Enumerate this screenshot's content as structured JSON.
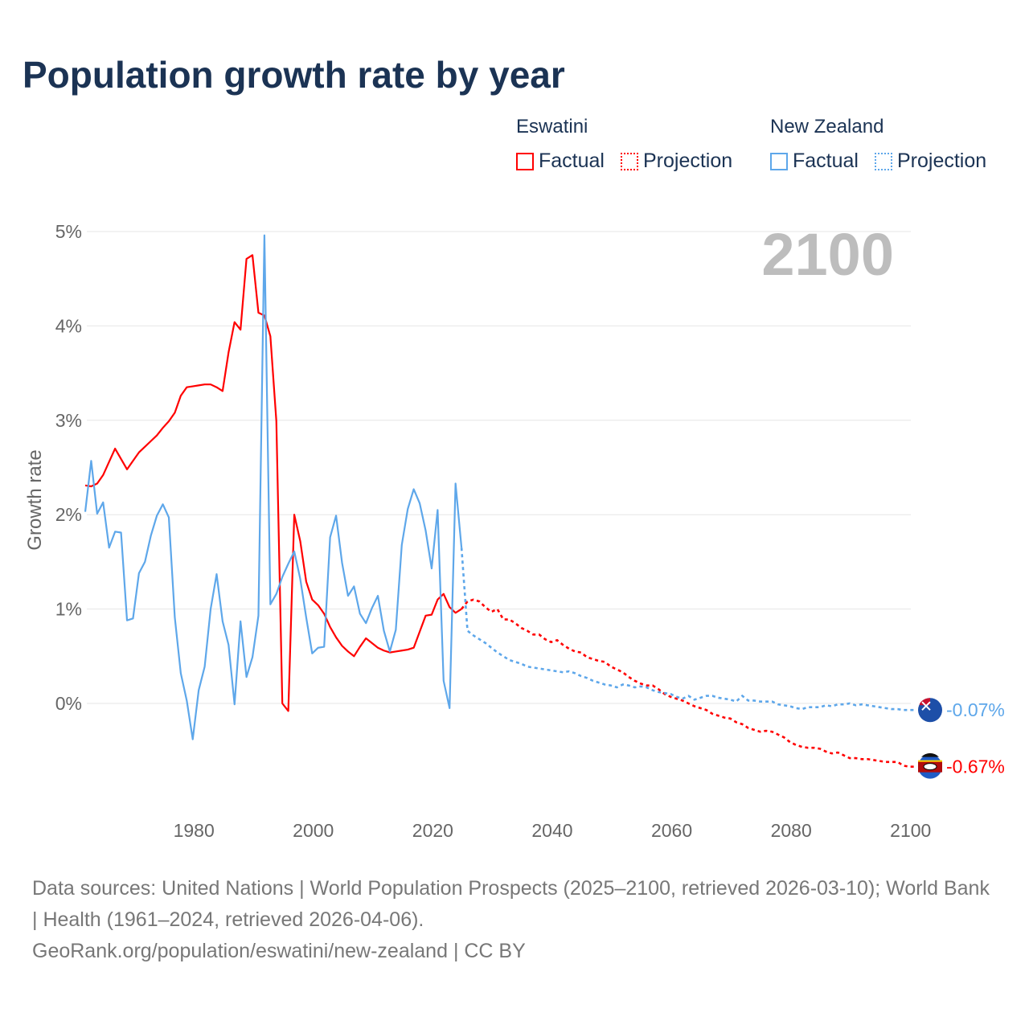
{
  "colors": {
    "eswatini": "#ff0000",
    "new_zealand": "#5ea7ea",
    "title": "#1b3354",
    "grid": "#e6e6e6",
    "year_watermark": "#bdbdbd"
  },
  "legend": {
    "groups": [
      {
        "country": "Eswatini",
        "factual": "Factual",
        "projection": "Projection"
      },
      {
        "country": "New Zealand",
        "factual": "Factual",
        "projection": "Projection"
      }
    ]
  },
  "footer": {
    "sources": "Data sources: United Nations | World Population Prospects (2025–2100, retrieved 2026-03-10); World Bank | Health (1961–2024, retrieved 2026-04-06).",
    "link": "GeoRank.org/population/eswatini/new-zealand | CC BY"
  },
  "chart_data": {
    "type": "line",
    "title": "Population growth rate by year",
    "xlabel": "",
    "ylabel": "Growth rate",
    "year_watermark": "2100",
    "xlim": [
      1961,
      2100
    ],
    "ylim": [
      -0.8,
      5.0
    ],
    "x_ticks": [
      1980,
      2000,
      2020,
      2040,
      2060,
      2080,
      2100
    ],
    "x_tick_labels": [
      "1980",
      "2000",
      "2020",
      "2040",
      "2060",
      "2080",
      "2100"
    ],
    "y_ticks": [
      0,
      1,
      2,
      3,
      4,
      5
    ],
    "y_tick_labels": [
      "0%",
      "1%",
      "2%",
      "3%",
      "4%",
      "5%"
    ],
    "grid": true,
    "legend_position": "top-right",
    "series": [
      {
        "name": "Eswatini",
        "key": "eswatini",
        "factual_start": 1961,
        "factual": [
          2.31,
          2.3,
          2.33,
          2.42,
          2.56,
          2.7,
          2.59,
          2.48,
          2.57,
          2.66,
          2.72,
          2.78,
          2.84,
          2.92,
          2.99,
          3.08,
          3.26,
          3.35,
          3.36,
          3.37,
          3.38,
          3.38,
          3.35,
          3.31,
          3.72,
          4.04,
          3.96,
          4.71,
          4.75,
          4.14,
          4.11,
          3.89,
          2.99,
          0.0,
          -0.08,
          2.0,
          1.72,
          1.29,
          1.1,
          1.04,
          0.95,
          0.81,
          0.7,
          0.61,
          0.55,
          0.5,
          0.6,
          0.69,
          0.64,
          0.59,
          0.56,
          0.54,
          0.55,
          0.56,
          0.57,
          0.59,
          0.76,
          0.93,
          0.94,
          1.1,
          1.16,
          1.02,
          0.96,
          1.0
        ],
        "projection_start": 2025,
        "projection": [
          1.08,
          1.1,
          1.08,
          1.02,
          0.97,
          1.0,
          0.89,
          0.89,
          0.85,
          0.8,
          0.77,
          0.73,
          0.73,
          0.68,
          0.65,
          0.67,
          0.62,
          0.58,
          0.55,
          0.54,
          0.49,
          0.47,
          0.45,
          0.44,
          0.39,
          0.36,
          0.33,
          0.28,
          0.24,
          0.21,
          0.19,
          0.19,
          0.15,
          0.1,
          0.07,
          0.05,
          0.03,
          0.0,
          -0.03,
          -0.05,
          -0.07,
          -0.11,
          -0.13,
          -0.15,
          -0.16,
          -0.2,
          -0.22,
          -0.26,
          -0.28,
          -0.3,
          -0.29,
          -0.3,
          -0.33,
          -0.36,
          -0.41,
          -0.44,
          -0.46,
          -0.47,
          -0.47,
          -0.48,
          -0.51,
          -0.53,
          -0.52,
          -0.55,
          -0.58,
          -0.58,
          -0.59,
          -0.59,
          -0.6,
          -0.61,
          -0.62,
          -0.62,
          -0.62,
          -0.66,
          -0.67,
          -0.67
        ],
        "end_label": "-0.67%"
      },
      {
        "name": "New Zealand",
        "key": "new_zealand",
        "factual_start": 1961,
        "factual": [
          2.03,
          2.57,
          2.01,
          2.13,
          1.65,
          1.82,
          1.81,
          0.88,
          0.9,
          1.38,
          1.5,
          1.78,
          1.99,
          2.11,
          1.97,
          0.91,
          0.32,
          0.03,
          -0.38,
          0.14,
          0.39,
          1.0,
          1.37,
          0.87,
          0.62,
          -0.01,
          0.87,
          0.28,
          0.49,
          0.93,
          4.96,
          1.05,
          1.16,
          1.34,
          1.48,
          1.61,
          1.32,
          0.91,
          0.53,
          0.59,
          0.6,
          1.76,
          1.99,
          1.49,
          1.14,
          1.24,
          0.95,
          0.85,
          1.01,
          1.14,
          0.77,
          0.55,
          0.78,
          1.68,
          2.06,
          2.27,
          2.12,
          1.83,
          1.43,
          2.05,
          0.24,
          -0.05,
          2.33,
          1.65
        ],
        "projection_start": 2025,
        "projection": [
          0.77,
          0.72,
          0.68,
          0.64,
          0.59,
          0.54,
          0.5,
          0.46,
          0.44,
          0.42,
          0.39,
          0.38,
          0.37,
          0.36,
          0.35,
          0.34,
          0.33,
          0.34,
          0.32,
          0.29,
          0.27,
          0.24,
          0.22,
          0.2,
          0.19,
          0.17,
          0.2,
          0.19,
          0.17,
          0.18,
          0.17,
          0.14,
          0.12,
          0.11,
          0.1,
          0.07,
          0.05,
          0.08,
          0.04,
          0.06,
          0.08,
          0.08,
          0.06,
          0.05,
          0.04,
          0.02,
          0.08,
          0.03,
          0.03,
          0.02,
          0.02,
          0.02,
          -0.01,
          -0.02,
          -0.03,
          -0.05,
          -0.06,
          -0.04,
          -0.04,
          -0.04,
          -0.02,
          -0.03,
          -0.01,
          -0.01,
          0.0,
          -0.02,
          -0.01,
          -0.02,
          -0.03,
          -0.04,
          -0.05,
          -0.06,
          -0.06,
          -0.07,
          -0.07,
          -0.07
        ],
        "end_label": "-0.07%"
      }
    ]
  }
}
